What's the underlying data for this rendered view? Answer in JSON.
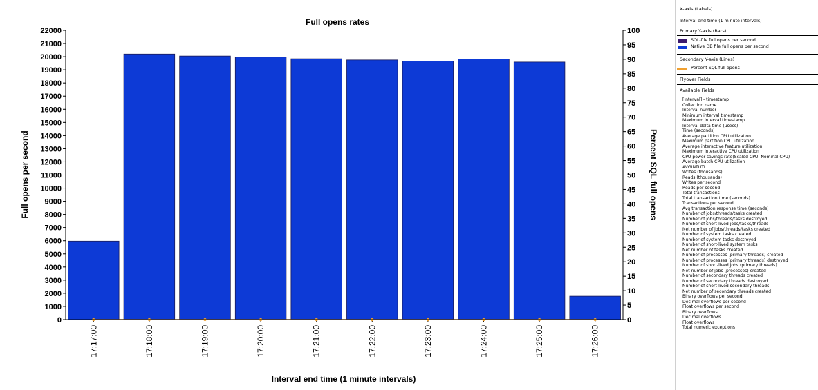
{
  "chart_data": {
    "type": "bar",
    "title": "Full opens rates",
    "xlabel": "Interval end time (1 minute intervals)",
    "ylabel": "Full opens per second",
    "y2label": "Percent SQL full opens",
    "categories": [
      "17:17:00",
      "17:18:00",
      "17:19:00",
      "17:20:00",
      "17:21:00",
      "17:22:00",
      "17:23:00",
      "17:24:00",
      "17:25:00",
      "17:26:00"
    ],
    "series": [
      {
        "name": "SQL-file full opens per second",
        "values": [
          0,
          0,
          0,
          0,
          0,
          0,
          0,
          0,
          0,
          0
        ],
        "color": "#3c1a6e"
      },
      {
        "name": "Native DB file full opens per second",
        "values": [
          5970,
          20200,
          20050,
          19970,
          19840,
          19750,
          19660,
          19820,
          19590,
          1780
        ],
        "color": "#0d3ad6"
      }
    ],
    "line_series": [
      {
        "name": "Percent SQL full opens",
        "values": [
          0,
          0,
          0,
          0,
          0,
          0,
          0,
          0,
          0,
          0
        ],
        "axis": "secondary",
        "color": "#f0a030"
      }
    ],
    "ylim": [
      0,
      22000
    ],
    "yticks": [
      0,
      1000,
      2000,
      3000,
      4000,
      5000,
      6000,
      7000,
      8000,
      9000,
      10000,
      11000,
      12000,
      13000,
      14000,
      15000,
      16000,
      17000,
      18000,
      19000,
      20000,
      21000,
      22000
    ],
    "y2lim": [
      0,
      100
    ],
    "y2ticks": [
      0,
      5,
      10,
      15,
      20,
      25,
      30,
      35,
      40,
      45,
      50,
      55,
      60,
      65,
      70,
      75,
      80,
      85,
      90,
      95,
      100
    ],
    "grid": false,
    "legend": "right"
  },
  "panel": {
    "x_axis_header": "X-axis (Labels)",
    "x_axis_field": "Interval end time (1 minute intervals)",
    "primary_header": "Primary Y-axis (Bars)",
    "bars": [
      {
        "label": "SQL-file full opens per second",
        "color": "#3c1a6e"
      },
      {
        "label": "Native DB file full opens per second",
        "color": "#0d3ad6"
      }
    ],
    "secondary_header": "Secondary Y-axis (Lines)",
    "lines": [
      {
        "label": "Percent SQL full opens",
        "color": "#f0a030"
      }
    ],
    "flyover_header": "Flyover Fields",
    "available_header": "Available Fields",
    "available_fields": [
      "[Interval] - timestamp",
      "Collection name",
      "Interval number",
      "Minimum interval timestamp",
      "Maximum interval timestamp",
      "Interval delta time (usecs)",
      "Time (seconds)",
      "Average partition CPU utilization",
      "Maximum partition CPU utilization",
      "Average interactive feature utilization",
      "Maximum interactive CPU utilization",
      "CPU power-savings rate(Scaled CPU: Nominal CPU)",
      "Average batch CPU utilization",
      "AVGINTUTL",
      "Writes (thousands)",
      "Reads (thousands)",
      "Writes per second",
      "Reads per second",
      "Total transactions",
      "Total transaction time (seconds)",
      "Transactions per second",
      "Avg transaction response time (seconds)",
      "Number of jobs/threads/tasks created",
      "Number of jobs/threads/tasks destroyed",
      "Number of short-lived jobs/tasks/threads",
      "Net number of jobs/threads/tasks created",
      "Number of system tasks created",
      "Number of system tasks destroyed",
      "Number of short-lived system tasks",
      "Net number of tasks created",
      "Number of processes (primary threads) created",
      "Number of processes (primary threads) destroyed",
      "Number of short-lived jobs (primary threads)",
      "Net number of jobs (processes) created",
      "Number of secondary threads created",
      "Number of secondary threads destroyed",
      "Number of short-lived secondary threads",
      "Net number of secondary threads created",
      "Binary overflows per second",
      "Decimal overflows per second",
      "Float overflows per second",
      "Binary overflows",
      "Decimal overflows",
      "Float overflows",
      "Total numeric exceptions"
    ]
  }
}
